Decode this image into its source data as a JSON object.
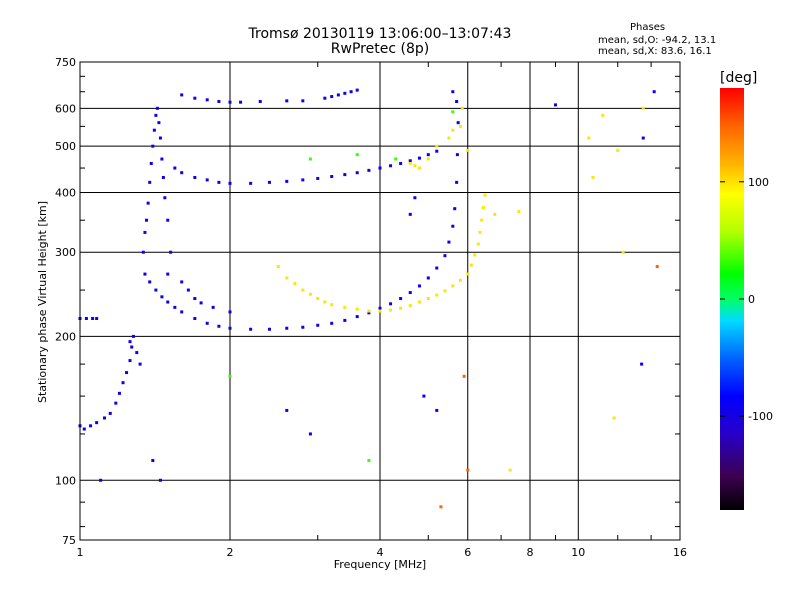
{
  "header": {
    "title_line1": "Tromsø 20130119 13:06:00–13:07:43",
    "title_line2": "RwPretec (8p)",
    "stats_heading": "Phases",
    "stats_o": "mean, sd,O: -94.2, 13.1",
    "stats_x": "mean, sd,X:  83.6, 16.1"
  },
  "chart_data": {
    "type": "scatter",
    "title": "Tromsø 20130119 13:06:00–13:07:43",
    "subtitle": "RwPretec (8p)",
    "xlabel": "Frequency [MHz]",
    "ylabel": "Stationary phase Virtual Height [km]",
    "xscale": "log",
    "yscale": "log",
    "xlim": [
      1,
      16
    ],
    "ylim": [
      75,
      750
    ],
    "grid": true,
    "xticks": [
      1,
      2,
      4,
      6,
      8,
      10,
      16
    ],
    "xtick_labels": [
      "1",
      "2",
      "4",
      "6",
      "8",
      "10",
      "16"
    ],
    "yticks": [
      75,
      100,
      200,
      300,
      400,
      500,
      600,
      750
    ],
    "ytick_labels": [
      "75",
      "100",
      "200",
      "300",
      "400",
      "500",
      "600",
      "750"
    ],
    "colorbar": {
      "label": "[deg]",
      "range": [
        -180,
        180
      ],
      "ticks": [
        -100,
        0,
        100
      ],
      "tick_labels": [
        "-100",
        "0",
        "100"
      ],
      "colormap": [
        "#000000",
        "#3c0050",
        "#2800c8",
        "#0000ff",
        "#0064ff",
        "#00dcff",
        "#00ff64",
        "#00ff00",
        "#b4ff00",
        "#ffff00",
        "#ffb400",
        "#ff6400",
        "#ff0000"
      ]
    },
    "series": [
      {
        "phase_deg": -100,
        "points": [
          [
            1.0,
            218
          ],
          [
            1.03,
            218
          ],
          [
            1.06,
            218
          ],
          [
            1.08,
            218
          ],
          [
            1.0,
            130
          ],
          [
            1.02,
            128
          ],
          [
            1.05,
            130
          ],
          [
            1.08,
            132
          ],
          [
            1.12,
            135
          ],
          [
            1.15,
            138
          ],
          [
            1.18,
            145
          ],
          [
            1.2,
            152
          ],
          [
            1.22,
            160
          ],
          [
            1.24,
            168
          ],
          [
            1.26,
            178
          ],
          [
            1.27,
            190
          ],
          [
            1.28,
            200
          ],
          [
            1.26,
            195
          ],
          [
            1.3,
            185
          ],
          [
            1.32,
            175
          ],
          [
            1.34,
            300
          ],
          [
            1.35,
            330
          ],
          [
            1.36,
            350
          ],
          [
            1.37,
            380
          ],
          [
            1.38,
            420
          ],
          [
            1.39,
            460
          ],
          [
            1.4,
            500
          ],
          [
            1.41,
            540
          ],
          [
            1.42,
            580
          ],
          [
            1.43,
            600
          ],
          [
            1.44,
            560
          ],
          [
            1.45,
            520
          ],
          [
            1.46,
            470
          ],
          [
            1.47,
            430
          ],
          [
            1.48,
            390
          ],
          [
            1.5,
            350
          ],
          [
            1.52,
            300
          ],
          [
            1.35,
            270
          ],
          [
            1.38,
            260
          ],
          [
            1.42,
            250
          ],
          [
            1.46,
            242
          ],
          [
            1.5,
            236
          ],
          [
            1.55,
            230
          ],
          [
            1.6,
            225
          ],
          [
            1.7,
            218
          ],
          [
            1.8,
            213
          ],
          [
            1.9,
            210
          ],
          [
            2.0,
            208
          ],
          [
            2.2,
            207
          ],
          [
            2.4,
            207
          ],
          [
            2.6,
            208
          ],
          [
            2.8,
            209
          ],
          [
            3.0,
            211
          ],
          [
            3.2,
            213
          ],
          [
            3.4,
            216
          ],
          [
            3.6,
            220
          ],
          [
            3.8,
            224
          ],
          [
            4.0,
            229
          ],
          [
            4.2,
            234
          ],
          [
            4.4,
            240
          ],
          [
            4.6,
            247
          ],
          [
            4.8,
            255
          ],
          [
            5.0,
            265
          ],
          [
            5.2,
            278
          ],
          [
            5.4,
            295
          ],
          [
            5.5,
            315
          ],
          [
            5.6,
            340
          ],
          [
            5.65,
            370
          ],
          [
            5.7,
            420
          ],
          [
            5.72,
            480
          ],
          [
            5.74,
            560
          ],
          [
            5.7,
            620
          ],
          [
            5.6,
            650
          ],
          [
            1.55,
            450
          ],
          [
            1.6,
            440
          ],
          [
            1.7,
            430
          ],
          [
            1.8,
            425
          ],
          [
            1.9,
            420
          ],
          [
            2.0,
            418
          ],
          [
            2.2,
            418
          ],
          [
            2.4,
            420
          ],
          [
            2.6,
            422
          ],
          [
            2.8,
            425
          ],
          [
            3.0,
            428
          ],
          [
            3.2,
            432
          ],
          [
            3.4,
            436
          ],
          [
            3.6,
            440
          ],
          [
            3.8,
            445
          ],
          [
            4.0,
            450
          ],
          [
            4.2,
            455
          ],
          [
            4.4,
            460
          ],
          [
            4.6,
            466
          ],
          [
            4.8,
            472
          ],
          [
            5.0,
            480
          ],
          [
            5.2,
            488
          ],
          [
            1.6,
            640
          ],
          [
            1.7,
            630
          ],
          [
            1.8,
            625
          ],
          [
            1.9,
            620
          ],
          [
            2.0,
            618
          ],
          [
            2.1,
            618
          ],
          [
            2.3,
            620
          ],
          [
            2.6,
            622
          ],
          [
            2.8,
            622
          ],
          [
            3.1,
            630
          ],
          [
            3.2,
            635
          ],
          [
            3.3,
            640
          ],
          [
            3.4,
            645
          ],
          [
            3.5,
            650
          ],
          [
            3.6,
            655
          ],
          [
            1.1,
            100
          ],
          [
            1.45,
            100
          ],
          [
            1.4,
            110
          ],
          [
            1.5,
            270
          ],
          [
            1.6,
            260
          ],
          [
            1.65,
            250
          ],
          [
            1.7,
            240
          ],
          [
            1.75,
            235
          ],
          [
            1.85,
            230
          ],
          [
            2.0,
            225
          ],
          [
            2.6,
            140
          ],
          [
            2.9,
            125
          ],
          [
            4.9,
            150
          ],
          [
            5.2,
            140
          ],
          [
            13.5,
            520
          ],
          [
            14.2,
            650
          ],
          [
            9.0,
            610
          ],
          [
            13.4,
            175
          ],
          [
            4.6,
            360
          ],
          [
            4.7,
            390
          ]
        ]
      },
      {
        "phase_deg": 100,
        "points": [
          [
            2.5,
            280
          ],
          [
            2.6,
            265
          ],
          [
            2.7,
            258
          ],
          [
            2.8,
            250
          ],
          [
            2.9,
            245
          ],
          [
            3.0,
            240
          ],
          [
            3.1,
            236
          ],
          [
            3.2,
            233
          ],
          [
            3.4,
            230
          ],
          [
            3.6,
            228
          ],
          [
            3.8,
            226
          ],
          [
            4.0,
            226
          ],
          [
            4.2,
            227
          ],
          [
            4.4,
            229
          ],
          [
            4.6,
            232
          ],
          [
            4.8,
            236
          ],
          [
            5.0,
            240
          ],
          [
            5.2,
            244
          ],
          [
            5.4,
            249
          ],
          [
            5.6,
            255
          ],
          [
            5.8,
            262
          ],
          [
            6.0,
            270
          ],
          [
            6.1,
            282
          ],
          [
            6.2,
            296
          ],
          [
            6.3,
            312
          ],
          [
            6.35,
            330
          ],
          [
            6.4,
            350
          ],
          [
            6.45,
            372
          ],
          [
            6.5,
            395
          ],
          [
            4.6,
            460
          ],
          [
            4.7,
            455
          ],
          [
            4.8,
            450
          ],
          [
            5.0,
            470
          ],
          [
            5.2,
            500
          ],
          [
            5.5,
            520
          ],
          [
            5.6,
            540
          ],
          [
            5.8,
            550
          ],
          [
            5.85,
            600
          ],
          [
            6.0,
            490
          ],
          [
            10.5,
            520
          ],
          [
            10.7,
            430
          ],
          [
            11.2,
            580
          ],
          [
            12.0,
            490
          ],
          [
            12.3,
            300
          ],
          [
            13.5,
            600
          ],
          [
            11.8,
            135
          ],
          [
            7.3,
            105
          ],
          [
            6.8,
            360
          ],
          [
            7.6,
            365
          ]
        ]
      },
      {
        "phase_deg": 40,
        "points": [
          [
            2.9,
            470
          ],
          [
            3.6,
            480
          ],
          [
            4.3,
            470
          ],
          [
            5.6,
            590
          ],
          [
            3.8,
            110
          ],
          [
            2.0,
            165
          ]
        ]
      },
      {
        "phase_deg": 150,
        "points": [
          [
            5.9,
            165
          ],
          [
            5.3,
            88
          ],
          [
            14.4,
            280
          ],
          [
            6.0,
            105
          ]
        ]
      }
    ]
  }
}
